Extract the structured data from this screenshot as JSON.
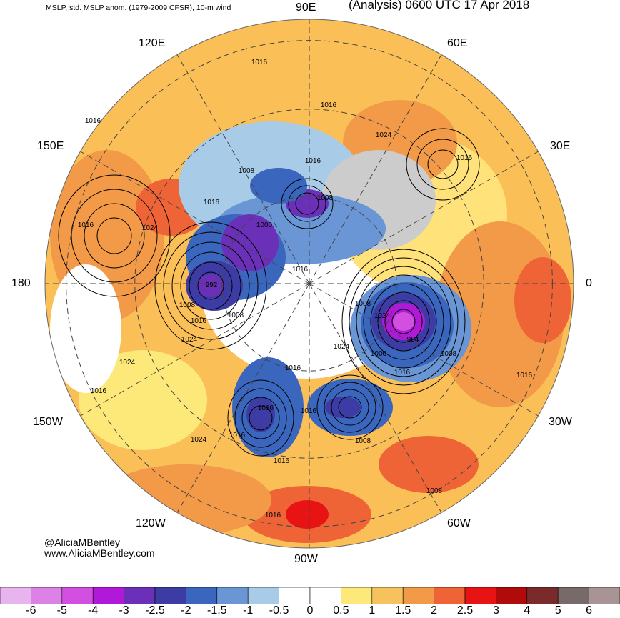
{
  "header": {
    "title_left": "MSLP, std. MSLP anom. (1979-2009 CFSR), 10-m wind",
    "title_right": "(Analysis) 0600 UTC 17 Apr 2018"
  },
  "longitude_labels": [
    "90E",
    "60E",
    "30E",
    "0",
    "30W",
    "60W",
    "90W",
    "120W",
    "150W",
    "180",
    "150E",
    "120E"
  ],
  "credit": {
    "handle": "@AliciaMBentley",
    "site": "www.AliciaMBentley.com"
  },
  "contour_labels": [
    "1016",
    "1016",
    "1016",
    "1024",
    "1016",
    "1016",
    "1008",
    "1016",
    "1008",
    "1024",
    "1016",
    "1024",
    "1000",
    "992",
    "1008",
    "1016",
    "1008",
    "1016",
    "1024",
    "1024",
    "1008",
    "1000",
    "984",
    "1008",
    "1016",
    "1016",
    "1008",
    "1016",
    "1024",
    "1024",
    "1016",
    "1016",
    "1016",
    "1016",
    "1016",
    "1008",
    "1016"
  ],
  "colorbar": {
    "labels": [
      "-6",
      "-5",
      "-4",
      "-3",
      "-2.5",
      "-2",
      "-1.5",
      "-1",
      "-0.5",
      "0",
      "0.5",
      "1",
      "1.5",
      "2",
      "2.5",
      "3",
      "4",
      "5",
      "6"
    ],
    "colors": [
      "#e8b4ee",
      "#dc82e6",
      "#d24fe0",
      "#b019d8",
      "#6a30b8",
      "#3c3ca4",
      "#3a66be",
      "#6a96d6",
      "#a8cce8",
      "#ffffff",
      "#ffffff",
      "#fde87a",
      "#f6c25e",
      "#f29a48",
      "#ee6436",
      "#e81414",
      "#b00a0a",
      "#7a2a2a",
      "#766a6a",
      "#a89494"
    ]
  },
  "chart_data": {
    "type": "heatmap",
    "projection": "north polar stereographic",
    "variable": "MSLP (hPa) and standardized MSLP anomaly",
    "valid_time": "0600 UTC 17 Apr 2018",
    "scale_range": [
      -6,
      6
    ],
    "lows": [
      {
        "label": "992",
        "lon": 178
      },
      {
        "label": "984",
        "lon": -25
      }
    ],
    "highs": [
      {
        "label": "1024",
        "lon": 150
      },
      {
        "label": "1024",
        "lon": -150
      }
    ]
  }
}
